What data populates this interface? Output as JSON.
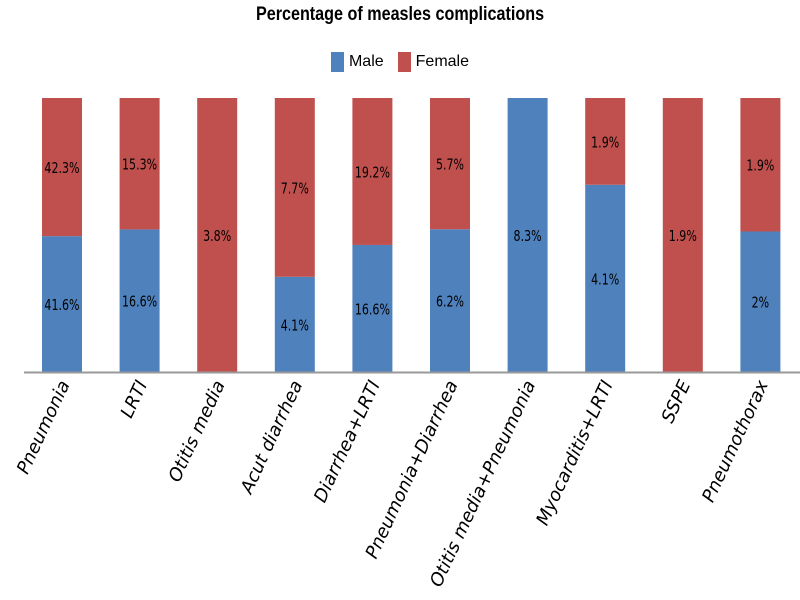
{
  "chart_data": {
    "type": "bar",
    "stacked": true,
    "normalized_percent": true,
    "title": "Percentage of measles complications",
    "categories": [
      "Pneumonia",
      "LRTI",
      "Otitis media",
      "Acut diarrhea",
      "Diarrhea+LRTI",
      "Pneumonia+Diarrhea",
      "Otitis media+Pneumonia",
      "Myocarditis+LRTI",
      "SSPE",
      "Pneumothorax"
    ],
    "series": [
      {
        "name": "Male",
        "color": "#4f81bd",
        "values": [
          41.6,
          16.6,
          0,
          4.1,
          16.6,
          6.2,
          8.3,
          4.1,
          0,
          2
        ],
        "labels": [
          "41.6%",
          "16.6%",
          "",
          "4.1%",
          "16.6%",
          "6.2%",
          "8.3%",
          "4.1%",
          "",
          "2%"
        ]
      },
      {
        "name": "Female",
        "color": "#c0504d",
        "values": [
          42.3,
          15.3,
          3.8,
          7.7,
          19.2,
          5.7,
          0,
          1.9,
          1.9,
          1.9
        ],
        "labels": [
          "42.3%",
          "15.3%",
          "3.8%",
          "7.7%",
          "19.2%",
          "5.7%",
          "",
          "1.9%",
          "1.9%",
          "1.9%"
        ]
      }
    ],
    "legend_position": "top",
    "grid": false
  }
}
